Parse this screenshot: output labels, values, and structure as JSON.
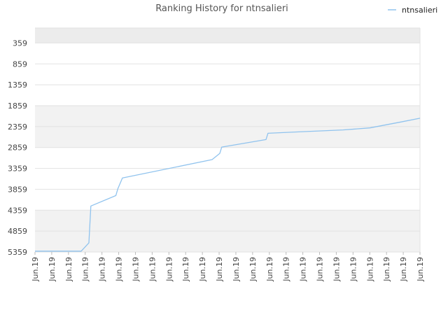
{
  "chart_data": {
    "type": "line",
    "title": "Ranking History for ntnsalieri",
    "xlabel": "",
    "ylabel": "",
    "y_reversed": true,
    "ylim": [
      5359,
      0
    ],
    "y_ticks": [
      359,
      859,
      1359,
      1859,
      2359,
      2859,
      3359,
      3859,
      4359,
      4859,
      5359
    ],
    "x_tick_labels": [
      "Jun.19",
      "Jun.19",
      "Jun.19",
      "Jun.19",
      "Jun.19",
      "Jun.19",
      "Jun.19",
      "Jun.19",
      "Jun.19",
      "Jun.19",
      "Jun.19",
      "Jun.19",
      "Jun.19",
      "Jun.19",
      "Jun.19",
      "Jun.19",
      "Jun.19",
      "Jun.19",
      "Jun.19",
      "Jun.19",
      "Jun.19",
      "Jun.19",
      "Jun.19",
      "Jun.19"
    ],
    "legend": {
      "position": "top-right",
      "label": "ntnsalieri"
    },
    "grid": true,
    "colors": {
      "line": "#90c3ee",
      "band": "#f2f2f2",
      "grid": "#e2e2e2"
    },
    "series": [
      {
        "name": "ntnsalieri",
        "x": [
          0,
          0.12,
          0.14,
          0.145,
          0.21,
          0.215,
          0.227,
          0.46,
          0.48,
          0.485,
          0.6,
          0.605,
          0.7,
          0.8,
          0.87,
          0.95,
          1.0
        ],
        "values": [
          5339,
          5339,
          5139,
          4259,
          4009,
          3849,
          3589,
          3149,
          2999,
          2849,
          2669,
          2519,
          2479,
          2439,
          2389,
          2249,
          2159
        ]
      }
    ]
  }
}
